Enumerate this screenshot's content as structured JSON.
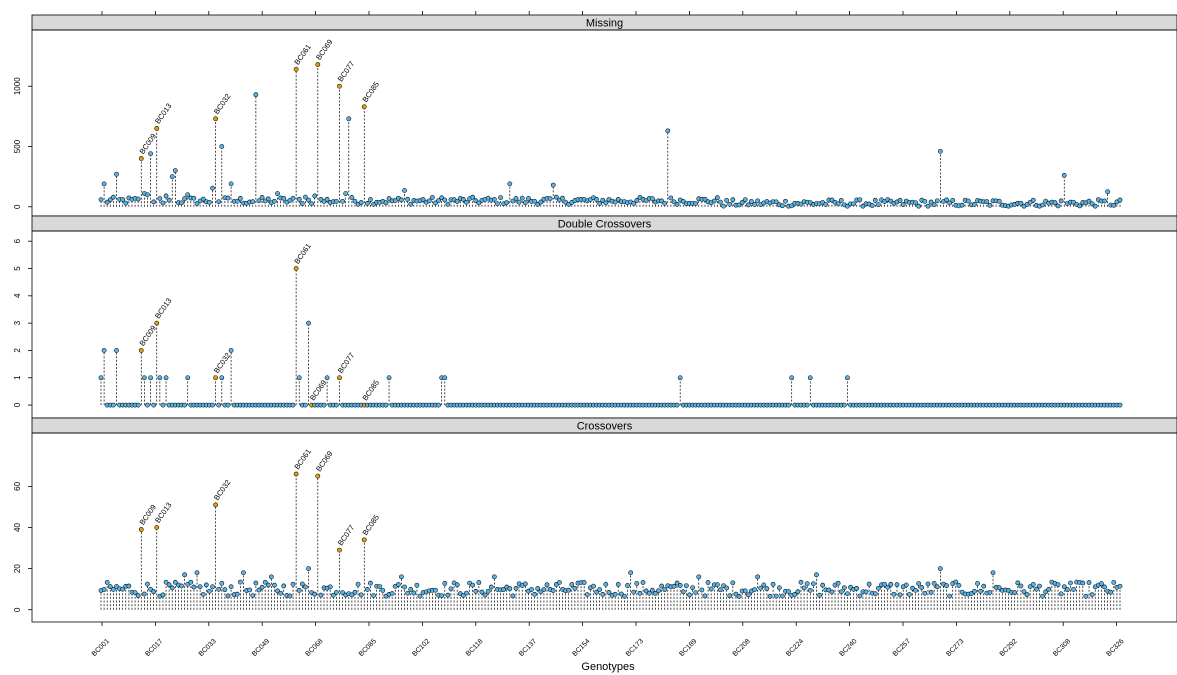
{
  "chart_data": {
    "type": "scatter",
    "style": "lollipop",
    "xlabel": "Genotypes",
    "n_genotypes": 330,
    "x_tick_labels": [
      "BC001",
      "BC017",
      "BC033",
      "BC049",
      "BC068",
      "BC085",
      "BC102",
      "BC118",
      "BC137",
      "BC154",
      "BC173",
      "BC189",
      "BC208",
      "BC224",
      "BC240",
      "BC257",
      "BC273",
      "BC292",
      "BC308",
      "BC326"
    ],
    "colors": {
      "normal": "#56b4e9",
      "highlight": "#e69f00",
      "stem": "#000000",
      "strip": "#d9d9d9"
    },
    "panels": [
      {
        "name": "Missing",
        "ylim": [
          -60,
          1450
        ],
        "y_ticks": [
          0,
          500,
          1000
        ],
        "baseline": 50,
        "spikes": [
          {
            "x": 1,
            "y": 230
          },
          {
            "x": 2,
            "y": 190
          },
          {
            "x": 9,
            "y": 270
          },
          {
            "x": 24,
            "y": 400
          },
          {
            "x": 27,
            "y": 110
          },
          {
            "x": 29,
            "y": 100
          },
          {
            "x": 30,
            "y": 440
          },
          {
            "x": 33,
            "y": 650
          },
          {
            "x": 40,
            "y": 90
          },
          {
            "x": 43,
            "y": 250
          },
          {
            "x": 45,
            "y": 300
          },
          {
            "x": 52,
            "y": 100
          },
          {
            "x": 68,
            "y": 155
          },
          {
            "x": 69,
            "y": 730
          },
          {
            "x": 74,
            "y": 500
          },
          {
            "x": 79,
            "y": 970
          },
          {
            "x": 80,
            "y": 190
          },
          {
            "x": 95,
            "y": 930
          },
          {
            "x": 108,
            "y": 110
          },
          {
            "x": 118,
            "y": 1140
          },
          {
            "x": 125,
            "y": 80
          },
          {
            "x": 130,
            "y": 90
          },
          {
            "x": 131,
            "y": 1180
          },
          {
            "x": 146,
            "y": 1000
          },
          {
            "x": 148,
            "y": 110
          },
          {
            "x": 151,
            "y": 730
          },
          {
            "x": 161,
            "y": 830
          },
          {
            "x": 184,
            "y": 135
          },
          {
            "x": 248,
            "y": 190
          },
          {
            "x": 276,
            "y": 180
          },
          {
            "x": 344,
            "y": 630
          },
          {
            "x": 511,
            "y": 460
          },
          {
            "x": 586,
            "y": 260
          },
          {
            "x": 612,
            "y": 125
          }
        ]
      },
      {
        "name": "Double Crossovers",
        "ylim": [
          -0.4,
          6.3
        ],
        "y_ticks": [
          0,
          1,
          2,
          3,
          4,
          5,
          6
        ],
        "baseline": 0,
        "spikes": [
          {
            "x": 0,
            "y": 1
          },
          {
            "x": 2,
            "y": 2
          },
          {
            "x": 9,
            "y": 2
          },
          {
            "x": 24,
            "y": 2
          },
          {
            "x": 27,
            "y": 1
          },
          {
            "x": 31,
            "y": 1
          },
          {
            "x": 33,
            "y": 3
          },
          {
            "x": 36,
            "y": 1
          },
          {
            "x": 39,
            "y": 1
          },
          {
            "x": 53,
            "y": 1
          },
          {
            "x": 69,
            "y": 1
          },
          {
            "x": 73,
            "y": 1
          },
          {
            "x": 79,
            "y": 2
          },
          {
            "x": 118,
            "y": 5
          },
          {
            "x": 120,
            "y": 1
          },
          {
            "x": 126,
            "y": 3
          },
          {
            "x": 128,
            "y": 0
          },
          {
            "x": 137,
            "y": 1
          },
          {
            "x": 146,
            "y": 1
          },
          {
            "x": 161,
            "y": 0
          },
          {
            "x": 175,
            "y": 1
          },
          {
            "x": 208,
            "y": 1
          },
          {
            "x": 210,
            "y": 1
          },
          {
            "x": 353,
            "y": 1
          },
          {
            "x": 421,
            "y": 1
          },
          {
            "x": 431,
            "y": 1
          },
          {
            "x": 455,
            "y": 1
          }
        ]
      },
      {
        "name": "Crossovers",
        "ylim": [
          -5,
          85
        ],
        "y_ticks": [
          0,
          20,
          40,
          60
        ],
        "baseline": 10,
        "spikes": [
          {
            "x": 24,
            "y": 39
          },
          {
            "x": 33,
            "y": 40
          },
          {
            "x": 69,
            "y": 51
          },
          {
            "x": 118,
            "y": 66
          },
          {
            "x": 131,
            "y": 65
          },
          {
            "x": 126,
            "y": 20
          },
          {
            "x": 146,
            "y": 29
          },
          {
            "x": 161,
            "y": 34
          },
          {
            "x": 59,
            "y": 18
          },
          {
            "x": 50,
            "y": 17
          },
          {
            "x": 86,
            "y": 18
          },
          {
            "x": 103,
            "y": 16
          },
          {
            "x": 183,
            "y": 16
          },
          {
            "x": 240,
            "y": 16
          },
          {
            "x": 323,
            "y": 18
          },
          {
            "x": 363,
            "y": 16
          },
          {
            "x": 400,
            "y": 16
          },
          {
            "x": 435,
            "y": 17
          },
          {
            "x": 511,
            "y": 20
          },
          {
            "x": 543,
            "y": 18
          },
          {
            "x": 590,
            "y": 13
          }
        ]
      }
    ],
    "labels": [
      {
        "panel": 0,
        "text": "BC009",
        "x": 24,
        "y": 400
      },
      {
        "panel": 0,
        "text": "BC013",
        "x": 33,
        "y": 650
      },
      {
        "panel": 0,
        "text": "BC032",
        "x": 69,
        "y": 730
      },
      {
        "panel": 0,
        "text": "BC061",
        "x": 118,
        "y": 1140
      },
      {
        "panel": 0,
        "text": "BC069",
        "x": 131,
        "y": 1180
      },
      {
        "panel": 0,
        "text": "BC077",
        "x": 146,
        "y": 1000
      },
      {
        "panel": 0,
        "text": "BC085",
        "x": 161,
        "y": 830
      },
      {
        "panel": 1,
        "text": "BC009",
        "x": 24,
        "y": 2
      },
      {
        "panel": 1,
        "text": "BC013",
        "x": 33,
        "y": 3
      },
      {
        "panel": 1,
        "text": "BC032",
        "x": 69,
        "y": 1
      },
      {
        "panel": 1,
        "text": "BC061",
        "x": 118,
        "y": 5
      },
      {
        "panel": 1,
        "text": "BC069",
        "x": 128,
        "y": 0
      },
      {
        "panel": 1,
        "text": "BC077",
        "x": 146,
        "y": 1
      },
      {
        "panel": 1,
        "text": "BC085",
        "x": 161,
        "y": 0
      },
      {
        "panel": 2,
        "text": "BC009",
        "x": 24,
        "y": 39
      },
      {
        "panel": 2,
        "text": "BC013",
        "x": 33,
        "y": 40
      },
      {
        "panel": 2,
        "text": "BC032",
        "x": 69,
        "y": 51
      },
      {
        "panel": 2,
        "text": "BC061",
        "x": 118,
        "y": 66
      },
      {
        "panel": 2,
        "text": "BC069",
        "x": 131,
        "y": 65
      },
      {
        "panel": 2,
        "text": "BC077",
        "x": 146,
        "y": 29
      },
      {
        "panel": 2,
        "text": "BC085",
        "x": 161,
        "y": 34
      }
    ]
  }
}
